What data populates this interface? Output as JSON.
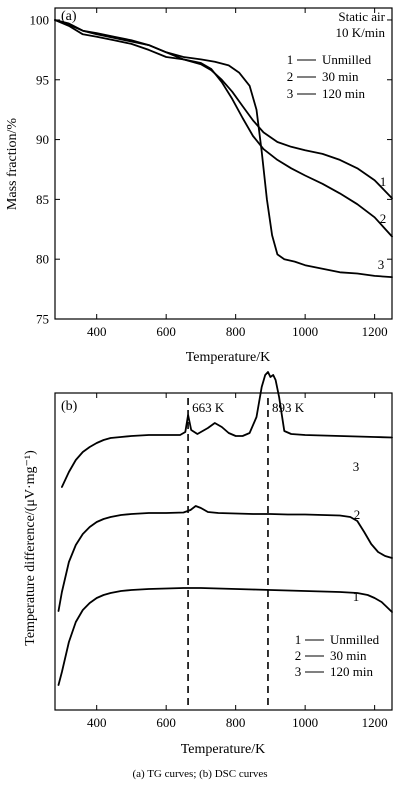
{
  "caption": "(a) TG curves; (b) DSC curves",
  "chart_data": [
    {
      "type": "line",
      "panel_label": "(a)",
      "conditions": [
        "Static air",
        "10 K/min"
      ],
      "xlabel": "Temperature/K",
      "ylabel": "Mass fraction/%",
      "xlim": [
        280,
        1250
      ],
      "ylim": [
        75,
        101
      ],
      "xticks": [
        400,
        600,
        800,
        1000,
        1200
      ],
      "yticks": [
        75,
        80,
        85,
        90,
        95,
        100
      ],
      "legend": {
        "position": "top-right",
        "entries": [
          {
            "key": "1",
            "label": "Unmilled"
          },
          {
            "key": "2",
            "label": "30 min"
          },
          {
            "key": "3",
            "label": "120 min"
          }
        ]
      },
      "series": [
        {
          "name": "1",
          "curve_label": "1",
          "x": [
            280,
            320,
            360,
            400,
            450,
            500,
            550,
            600,
            650,
            700,
            730,
            760,
            790,
            820,
            850,
            880,
            920,
            960,
            1000,
            1050,
            1100,
            1150,
            1200,
            1250
          ],
          "y": [
            100.0,
            99.7,
            99.1,
            98.8,
            98.5,
            98.2,
            97.9,
            97.3,
            96.7,
            96.3,
            95.8,
            95.0,
            94.0,
            92.8,
            91.6,
            90.6,
            89.8,
            89.4,
            89.1,
            88.8,
            88.3,
            87.6,
            86.6,
            85.1
          ]
        },
        {
          "name": "2",
          "curve_label": "2",
          "x": [
            280,
            320,
            360,
            400,
            450,
            500,
            550,
            600,
            650,
            700,
            730,
            760,
            790,
            820,
            850,
            880,
            920,
            960,
            1000,
            1050,
            1100,
            1150,
            1200,
            1250
          ],
          "y": [
            100.0,
            99.5,
            98.8,
            98.6,
            98.3,
            98.0,
            97.5,
            96.9,
            96.7,
            96.4,
            95.9,
            94.8,
            93.4,
            91.8,
            90.3,
            89.2,
            88.3,
            87.6,
            87.0,
            86.3,
            85.5,
            84.6,
            83.5,
            81.9
          ]
        },
        {
          "name": "3",
          "curve_label": "3",
          "x": [
            280,
            320,
            360,
            400,
            450,
            500,
            550,
            600,
            650,
            700,
            740,
            780,
            810,
            840,
            860,
            875,
            890,
            905,
            920,
            940,
            970,
            1000,
            1050,
            1100,
            1150,
            1200,
            1250
          ],
          "y": [
            100.0,
            99.6,
            99.1,
            98.9,
            98.6,
            98.3,
            97.9,
            97.3,
            96.9,
            96.7,
            96.5,
            96.2,
            95.6,
            94.5,
            92.5,
            89.0,
            85.0,
            82.0,
            80.4,
            80.0,
            79.8,
            79.5,
            79.2,
            78.9,
            78.8,
            78.6,
            78.5
          ]
        }
      ]
    },
    {
      "type": "line",
      "panel_label": "(b)",
      "xlabel": "Temperature/K",
      "ylabel": "Temperature difference/(μV·mg⁻¹)",
      "xlim": [
        280,
        1250
      ],
      "xticks": [
        400,
        600,
        800,
        1000,
        1200
      ],
      "yaxis_ticks_labeled": false,
      "annotations": [
        {
          "x": 663,
          "label": "663 K",
          "style": "dashed vertical line"
        },
        {
          "x": 893,
          "label": "893 K",
          "style": "dashed vertical line"
        }
      ],
      "legend": {
        "position": "bottom-right",
        "entries": [
          {
            "key": "1",
            "label": "Unmilled"
          },
          {
            "key": "2",
            "label": "30 min"
          },
          {
            "key": "3",
            "label": "120 min"
          }
        ]
      },
      "series": [
        {
          "name": "1",
          "curve_label": "1",
          "x": [
            290,
            300,
            320,
            340,
            360,
            380,
            400,
            420,
            440,
            470,
            500,
            550,
            600,
            650,
            700,
            750,
            800,
            850,
            900,
            950,
            1000,
            1050,
            1100,
            1150,
            1180,
            1200,
            1220,
            1250
          ],
          "y": [
            0.2,
            1.5,
            4.5,
            6.5,
            7.7,
            8.4,
            8.9,
            9.2,
            9.4,
            9.6,
            9.7,
            9.8,
            9.85,
            9.9,
            9.9,
            9.85,
            9.8,
            9.75,
            9.7,
            9.65,
            9.6,
            9.55,
            9.5,
            9.4,
            9.2,
            8.9,
            8.5,
            7.5
          ]
        },
        {
          "name": "2",
          "curve_label": "2",
          "x": [
            290,
            300,
            320,
            340,
            360,
            380,
            400,
            420,
            440,
            470,
            500,
            550,
            600,
            650,
            670,
            685,
            700,
            720,
            750,
            800,
            850,
            900,
            950,
            1000,
            1050,
            1100,
            1130,
            1150,
            1170,
            1190,
            1210,
            1230,
            1250
          ],
          "y": [
            7.6,
            9.5,
            12.5,
            14.2,
            15.3,
            16.0,
            16.5,
            16.8,
            17.0,
            17.2,
            17.3,
            17.4,
            17.4,
            17.45,
            17.7,
            18.1,
            17.9,
            17.5,
            17.4,
            17.35,
            17.3,
            17.3,
            17.25,
            17.25,
            17.2,
            17.15,
            17.0,
            16.6,
            15.5,
            14.3,
            13.5,
            13.1,
            12.9
          ]
        },
        {
          "name": "3",
          "curve_label": "3",
          "x": [
            300,
            320,
            340,
            360,
            380,
            400,
            420,
            440,
            470,
            500,
            550,
            600,
            640,
            655,
            663,
            672,
            690,
            720,
            740,
            760,
            780,
            800,
            820,
            840,
            860,
            875,
            885,
            893,
            900,
            908,
            915,
            925,
            940,
            960,
            1000,
            1050,
            1100,
            1150,
            1200,
            1250
          ],
          "y": [
            20.0,
            21.5,
            22.7,
            23.5,
            24.0,
            24.4,
            24.7,
            24.9,
            25.0,
            25.1,
            25.2,
            25.2,
            25.2,
            25.5,
            27.2,
            25.7,
            25.3,
            25.9,
            26.4,
            26.0,
            25.4,
            25.1,
            25.1,
            25.4,
            27.0,
            30.0,
            31.2,
            31.5,
            31.0,
            31.2,
            30.7,
            29.0,
            25.6,
            25.3,
            25.2,
            25.15,
            25.1,
            25.05,
            25.0,
            24.95
          ]
        }
      ]
    }
  ]
}
